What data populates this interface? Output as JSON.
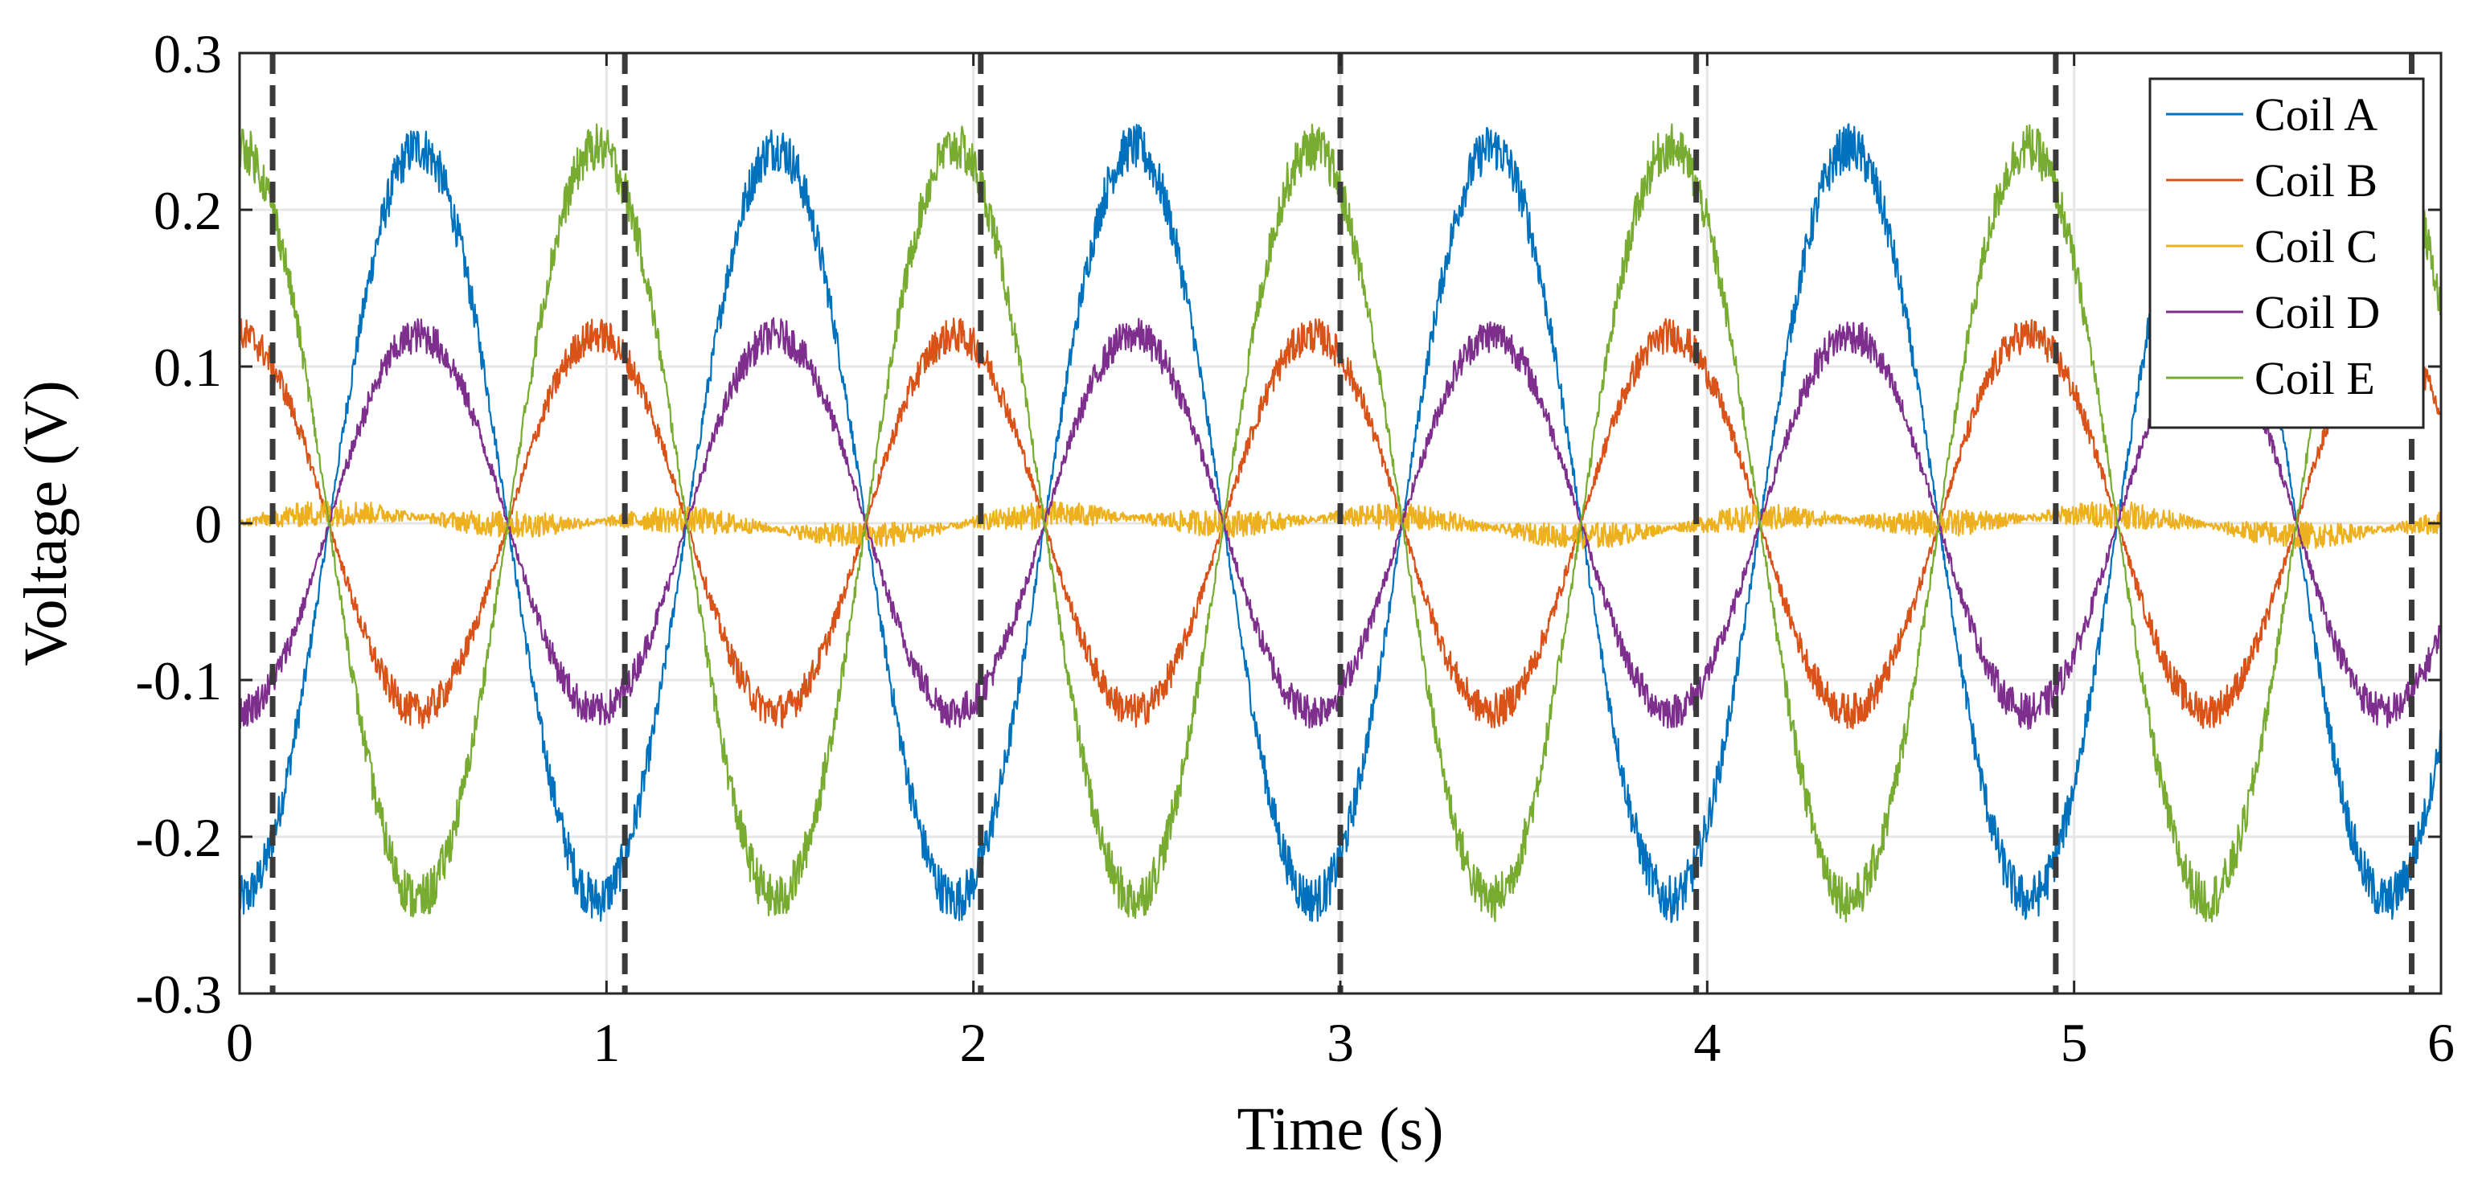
{
  "chart_data": {
    "type": "line",
    "title": "",
    "xlabel": "Time (s)",
    "ylabel": "Voltage (V)",
    "xlim": [
      0,
      6
    ],
    "ylim": [
      -0.3,
      0.3
    ],
    "xticks": [
      0,
      1,
      2,
      3,
      4,
      5,
      6
    ],
    "xtick_labels": [
      "0",
      "1",
      "2",
      "3",
      "4",
      "5",
      "6"
    ],
    "yticks": [
      -0.3,
      -0.2,
      -0.1,
      0,
      0.1,
      0.2,
      0.3
    ],
    "ytick_labels": [
      "-0.3",
      "-0.2",
      "-0.1",
      "0",
      "0.1",
      "0.2",
      "0.3"
    ],
    "grid": true,
    "legend_position": "top-right",
    "period_s": 0.975,
    "dashed_markers_x": [
      0.09,
      1.05,
      2.02,
      3.0,
      3.97,
      4.95,
      5.92
    ],
    "series": [
      {
        "name": "Coil A",
        "color": "#0072BD",
        "amplitude": 0.24,
        "phase_deg": 270,
        "noise": 0.012
      },
      {
        "name": "Coil B",
        "color": "#D95319",
        "amplitude": 0.12,
        "phase_deg": 90,
        "noise": 0.009
      },
      {
        "name": "Coil C",
        "color": "#EDB120",
        "amplitude": 0.004,
        "phase_deg": 0,
        "noise": 0.007
      },
      {
        "name": "Coil D",
        "color": "#7E2F8E",
        "amplitude": 0.12,
        "phase_deg": 270,
        "noise": 0.009
      },
      {
        "name": "Coil E",
        "color": "#77AC30",
        "amplitude": 0.24,
        "phase_deg": 90,
        "noise": 0.012
      }
    ]
  }
}
